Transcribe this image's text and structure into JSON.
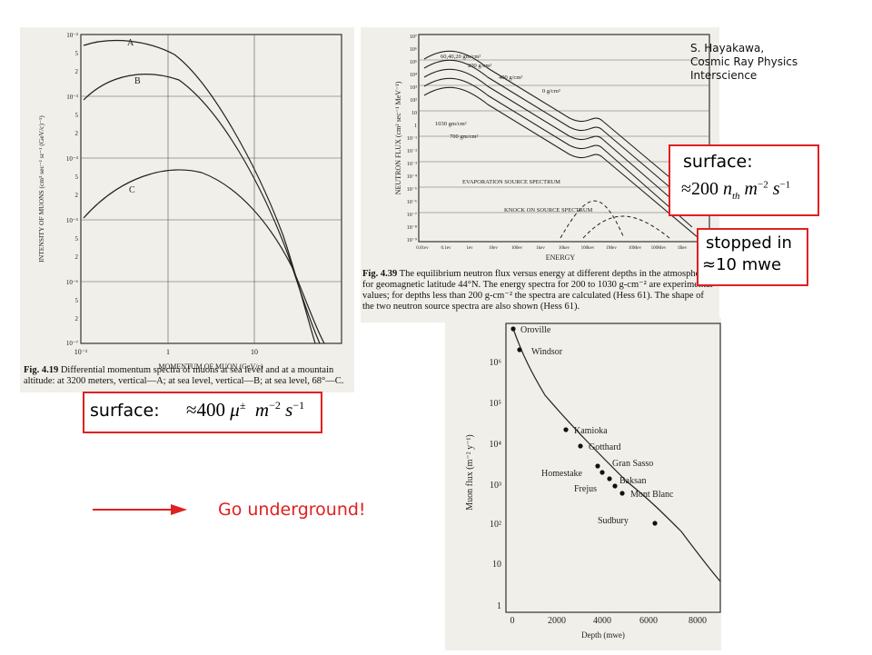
{
  "muon_panel": {
    "y_title": "INTENSITY OF MUONS (cm² sec⁻¹ sr⁻¹ (GeV/c)⁻¹)",
    "x_title": "MOMENTUM OF MUON (GeV/c)",
    "y_ticks": [
      "10⁻²",
      "5",
      "2",
      "10⁻³",
      "5",
      "2",
      "10⁻⁴",
      "5",
      "2",
      "10⁻⁵",
      "5",
      "2",
      "10⁻⁶",
      "5",
      "2",
      "10⁻⁷"
    ],
    "x_ticks": [
      "10⁻¹",
      "1",
      "10"
    ],
    "curve_labels": [
      "A",
      "B",
      "C"
    ],
    "caption_fig": "Fig. 4.19",
    "caption_text": "Differential momentum spectra of muons at sea level and at a mountain altitude: at 3200 meters, vertical—A; at sea level, vertical—B; at sea level, 68°—C."
  },
  "muon_surface": {
    "label": "surface:",
    "approx": "≈400",
    "particle": "μ",
    "particle_sup": "±",
    "unit_m": "m",
    "unit_m_exp": "−2",
    "unit_s": "s",
    "unit_s_exp": "−1"
  },
  "neutron_panel": {
    "y_title": "NEUTRON FLUX (cm² sec⁻¹ MeV⁻¹)",
    "x_title": "ENERGY",
    "y_ticks": [
      "10⁷",
      "10⁶",
      "10⁵",
      "10⁴",
      "10³",
      "10²",
      "10",
      "1",
      "10⁻¹",
      "10⁻²",
      "10⁻³",
      "10⁻⁴",
      "10⁻⁵",
      "10⁻⁶",
      "10⁻⁷",
      "10⁻⁸",
      "10⁻⁹"
    ],
    "x_ticks": [
      "0.01ev",
      "0.1ev",
      "1ev",
      "10ev",
      "100ev",
      "1kev",
      "10kev",
      "100kev",
      "1Mev",
      "10Mev",
      "100Mev",
      "1Bev",
      "10Bev"
    ],
    "curve_labels": [
      "60,40,20 gm/cm²",
      "200 g/cm²",
      "400 g/cm²",
      "0 g/cm²",
      "1030 gm/cm²",
      "700 gm/cm²"
    ],
    "annotations": [
      "EVAPORATION SOURCE SPECTRUM",
      "KNOCK ON SOURCE SPECTRUM"
    ],
    "caption_fig": "Fig. 4.39",
    "caption_text": "The equilibrium neutron flux versus energy at different depths in the atmosphere for geomagnetic latitude 44°N. The energy spectra for 200 to 1030 g-cm⁻² are experimental values; for depths less than 200 g-cm⁻² the spectra are calculated (Hess 61). The shape of the two neutron source spectra are also shown (Hess 61)."
  },
  "citation": {
    "line1": "S. Hayakawa,",
    "line2": "Cosmic Ray Physics",
    "line3": "Interscience"
  },
  "neutron_surface": {
    "label": "surface:",
    "approx": "≈200",
    "particle": "n",
    "particle_sub": "th",
    "unit_m": "m",
    "unit_m_exp": "−2",
    "unit_s": "s",
    "unit_s_exp": "−1"
  },
  "stopped": {
    "line1": "stopped in",
    "line2": "≈10 mwe"
  },
  "go_underground": "Go underground!",
  "depth_panel": {
    "y_title": "Muon flux (m⁻² y⁻¹)",
    "x_title": "Depth (mwe)",
    "y_ticks": [
      "10⁶",
      "10⁵",
      "10⁴",
      "10³",
      "10²",
      "10",
      "1"
    ],
    "x_ticks": [
      "0",
      "2000",
      "4000",
      "6000",
      "8000"
    ],
    "sites": [
      "Oroville",
      "Windsor",
      "Kamioka",
      "Gotthard",
      "Gran Sasso",
      "Homestake",
      "Baksan",
      "Frejus",
      "Mont Blanc",
      "Sudbury"
    ]
  },
  "colors": {
    "accent_red": "#e02020",
    "scan_bg": "#f1efe9"
  }
}
